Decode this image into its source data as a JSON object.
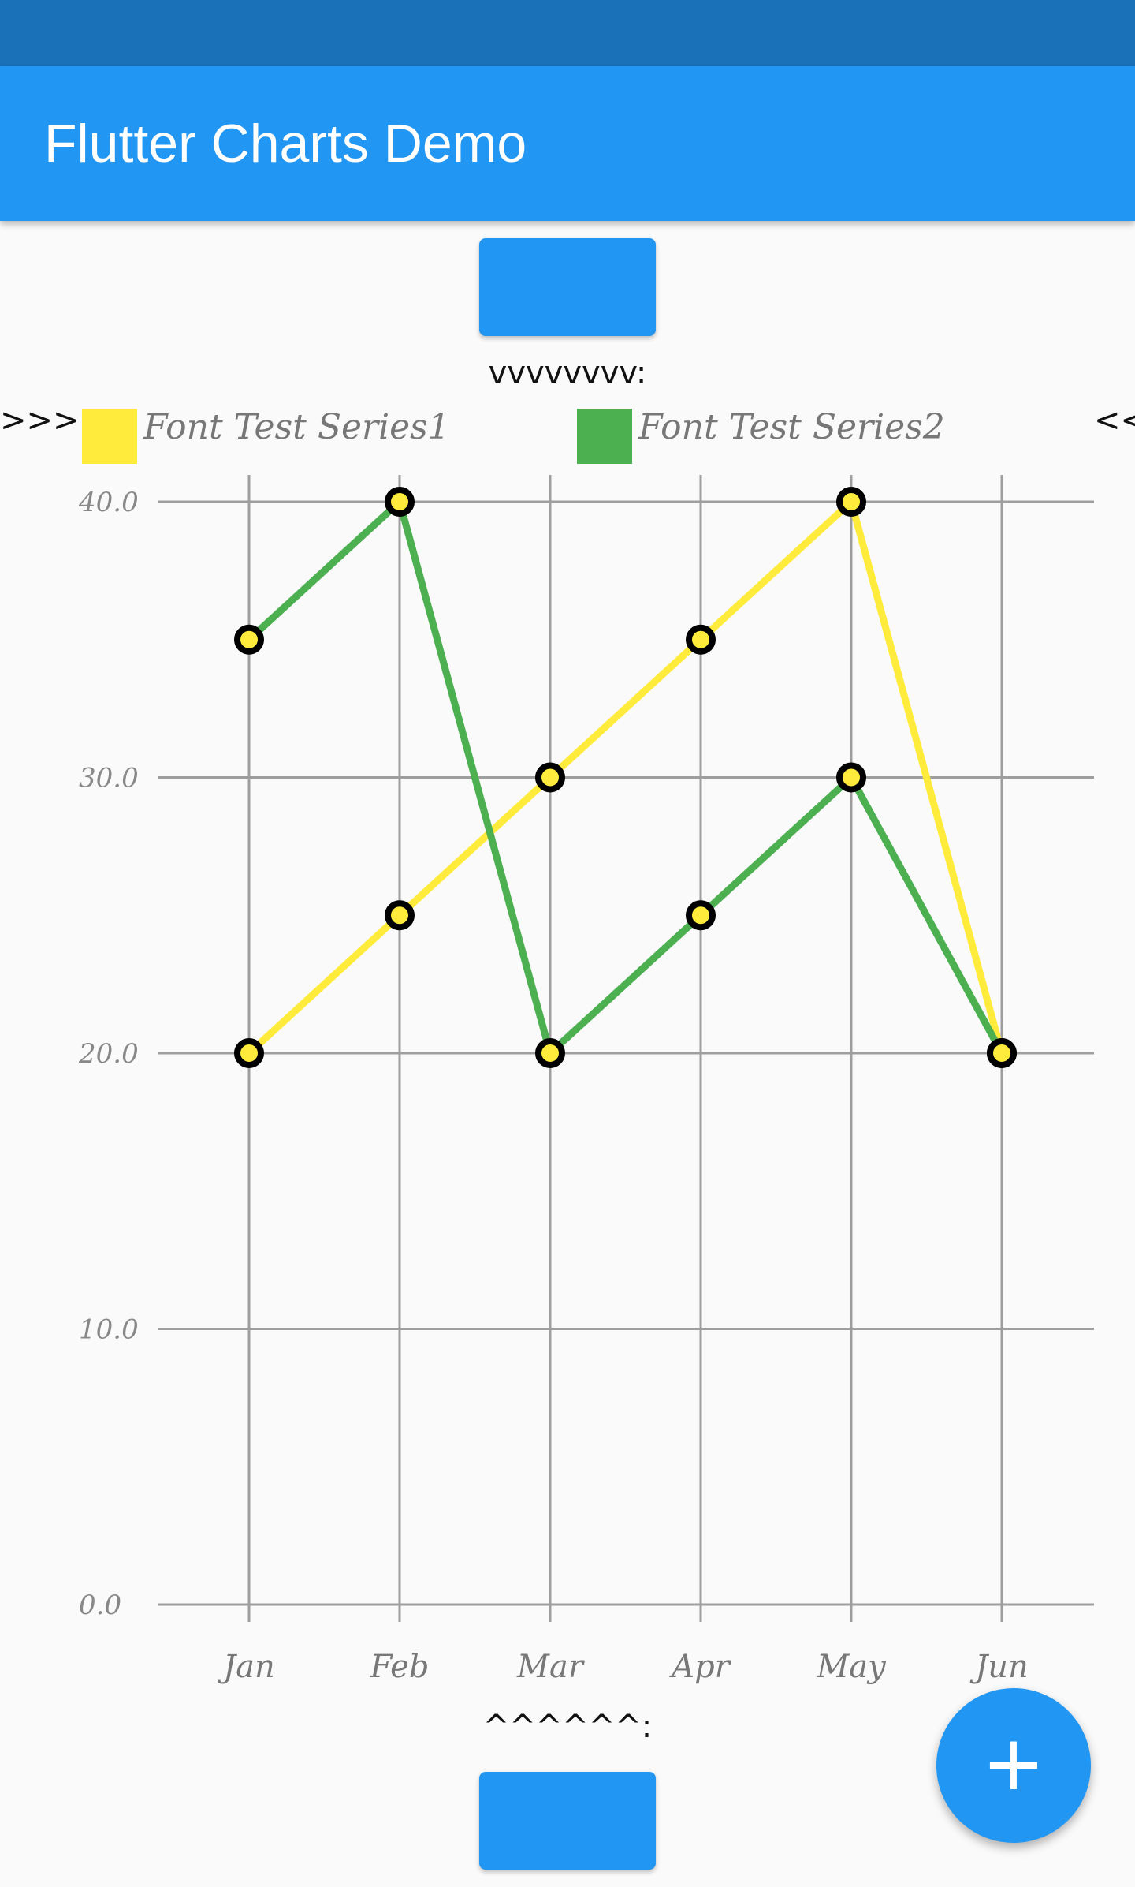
{
  "app_bar": {
    "title": "Flutter Charts Demo"
  },
  "chart_title_top": "vvvvvvvv:",
  "chart_title_bottom": "^^^^^^:",
  "left_marker": ">>>",
  "right_marker": "<<",
  "fab": {
    "icon": "plus-icon",
    "label": "+"
  },
  "colors": {
    "app_bar": "#2196f3",
    "status_bar": "#1a71b8",
    "series1": "#ffeb3b",
    "series2": "#4caf50"
  },
  "chart_data": {
    "type": "line",
    "x": [
      "Jan",
      "Feb",
      "Mar",
      "Apr",
      "May",
      "Jun"
    ],
    "series": [
      {
        "name": "Font Test Series1",
        "color": "#ffeb3b",
        "values": [
          20,
          25,
          30,
          35,
          40,
          20
        ]
      },
      {
        "name": "Font Test Series2",
        "color": "#4caf50",
        "values": [
          35,
          40,
          20,
          25,
          30,
          20
        ]
      }
    ],
    "ylim": [
      0,
      40
    ],
    "yticks": [
      "0.0",
      "10.0",
      "20.0",
      "30.0",
      "40.0"
    ],
    "grid": true,
    "legend": "top",
    "point_marker": "circle"
  }
}
